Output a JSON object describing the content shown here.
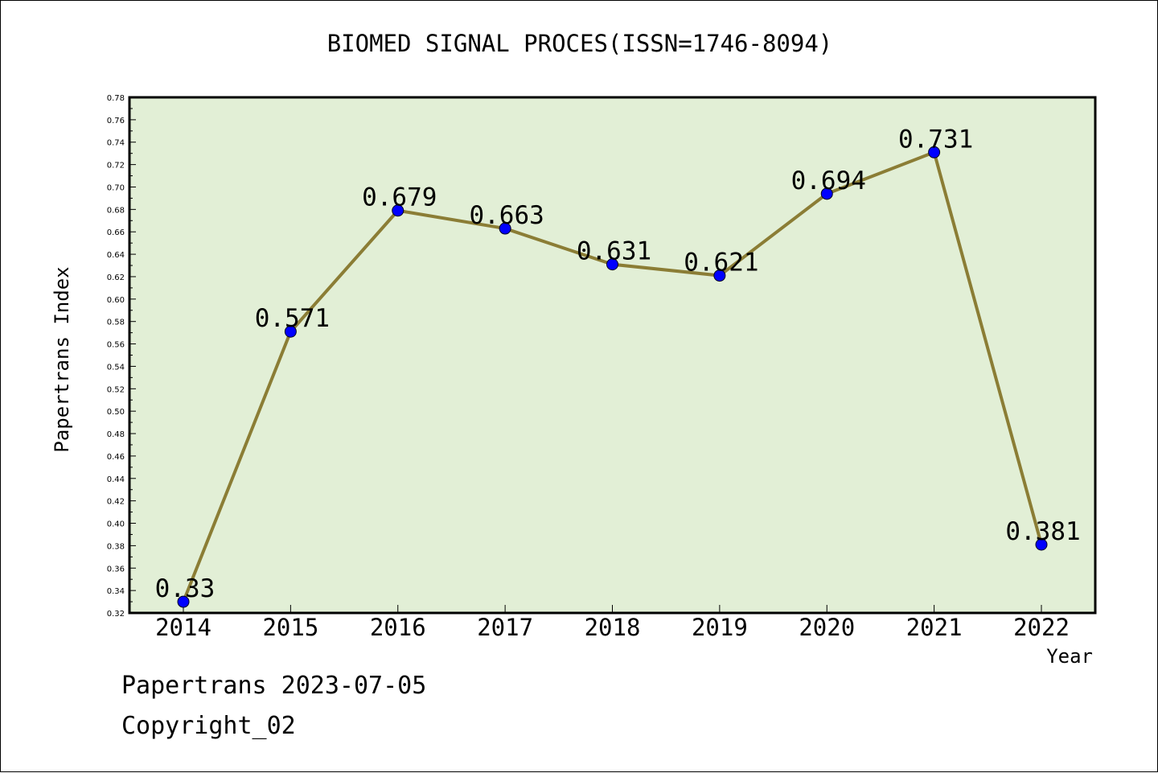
{
  "chart_data": {
    "type": "line",
    "title": "BIOMED SIGNAL PROCES(ISSN=1746-8094)",
    "xlabel": "Year",
    "ylabel": "Papertrans Index",
    "categories": [
      "2014",
      "2015",
      "2016",
      "2017",
      "2018",
      "2019",
      "2020",
      "2021",
      "2022"
    ],
    "values": [
      0.33,
      0.571,
      0.679,
      0.663,
      0.631,
      0.621,
      0.694,
      0.731,
      0.381
    ],
    "value_labels": [
      "0.33",
      "0.571",
      "0.679",
      "0.663",
      "0.631",
      "0.621",
      "0.694",
      "0.731",
      "0.381"
    ],
    "ylim": [
      0.32,
      0.78
    ],
    "yticks": [
      "0.32",
      "0.34",
      "0.36",
      "0.38",
      "0.40",
      "0.42",
      "0.44",
      "0.46",
      "0.48",
      "0.50",
      "0.52",
      "0.54",
      "0.56",
      "0.58",
      "0.60",
      "0.62",
      "0.64",
      "0.66",
      "0.68",
      "0.70",
      "0.72",
      "0.74",
      "0.76",
      "0.78"
    ],
    "grid": false,
    "legend": "none",
    "colors": {
      "plot_background": "#e2efd6",
      "line": "#8b7d35",
      "marker": "#0000ff"
    }
  },
  "footer": {
    "line1": "Papertrans 2023-07-05",
    "line2": "Copyright_02"
  }
}
